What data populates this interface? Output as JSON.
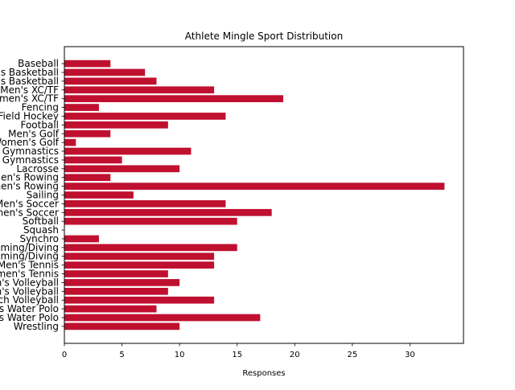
{
  "chart_data": {
    "type": "bar",
    "orientation": "horizontal",
    "title": "Athlete Mingle Sport Distribution",
    "xlabel": "Responses",
    "ylabel": "",
    "xlim": [
      0,
      34.65
    ],
    "xticks": [
      0,
      5,
      10,
      15,
      20,
      25,
      30
    ],
    "grid": false,
    "bar_color": "#c0102f",
    "categories": [
      "Baseball",
      "Men's Basketball",
      "Women's Basketball",
      "Men's XC/TF",
      "Women's XC/TF",
      "Fencing",
      "Field Hockey",
      "Football",
      "Men's Golf",
      "Women's Golf",
      "Men's Gymnastics",
      "Women's Gymnastics",
      "Lacrosse",
      "Men's Rowing",
      "Women's Rowing",
      "Sailing",
      "Men's Soccer",
      "Women's Soccer",
      "Softball",
      "Squash",
      "Synchro",
      "Men's Swimming/Diving",
      "Women's Swimming/Diving",
      "Men's Tennis",
      "Women's Tennis",
      "Men's Volleyball",
      "Women's Volleyball",
      "Beach Volleyball",
      "Men's Water Polo",
      "Women's Water Polo",
      "Wrestling"
    ],
    "values": [
      4,
      7,
      8,
      13,
      19,
      3,
      14,
      9,
      4,
      1,
      11,
      5,
      10,
      4,
      33,
      6,
      14,
      18,
      15,
      0,
      3,
      15,
      13,
      13,
      9,
      10,
      9,
      13,
      8,
      17,
      10
    ]
  }
}
